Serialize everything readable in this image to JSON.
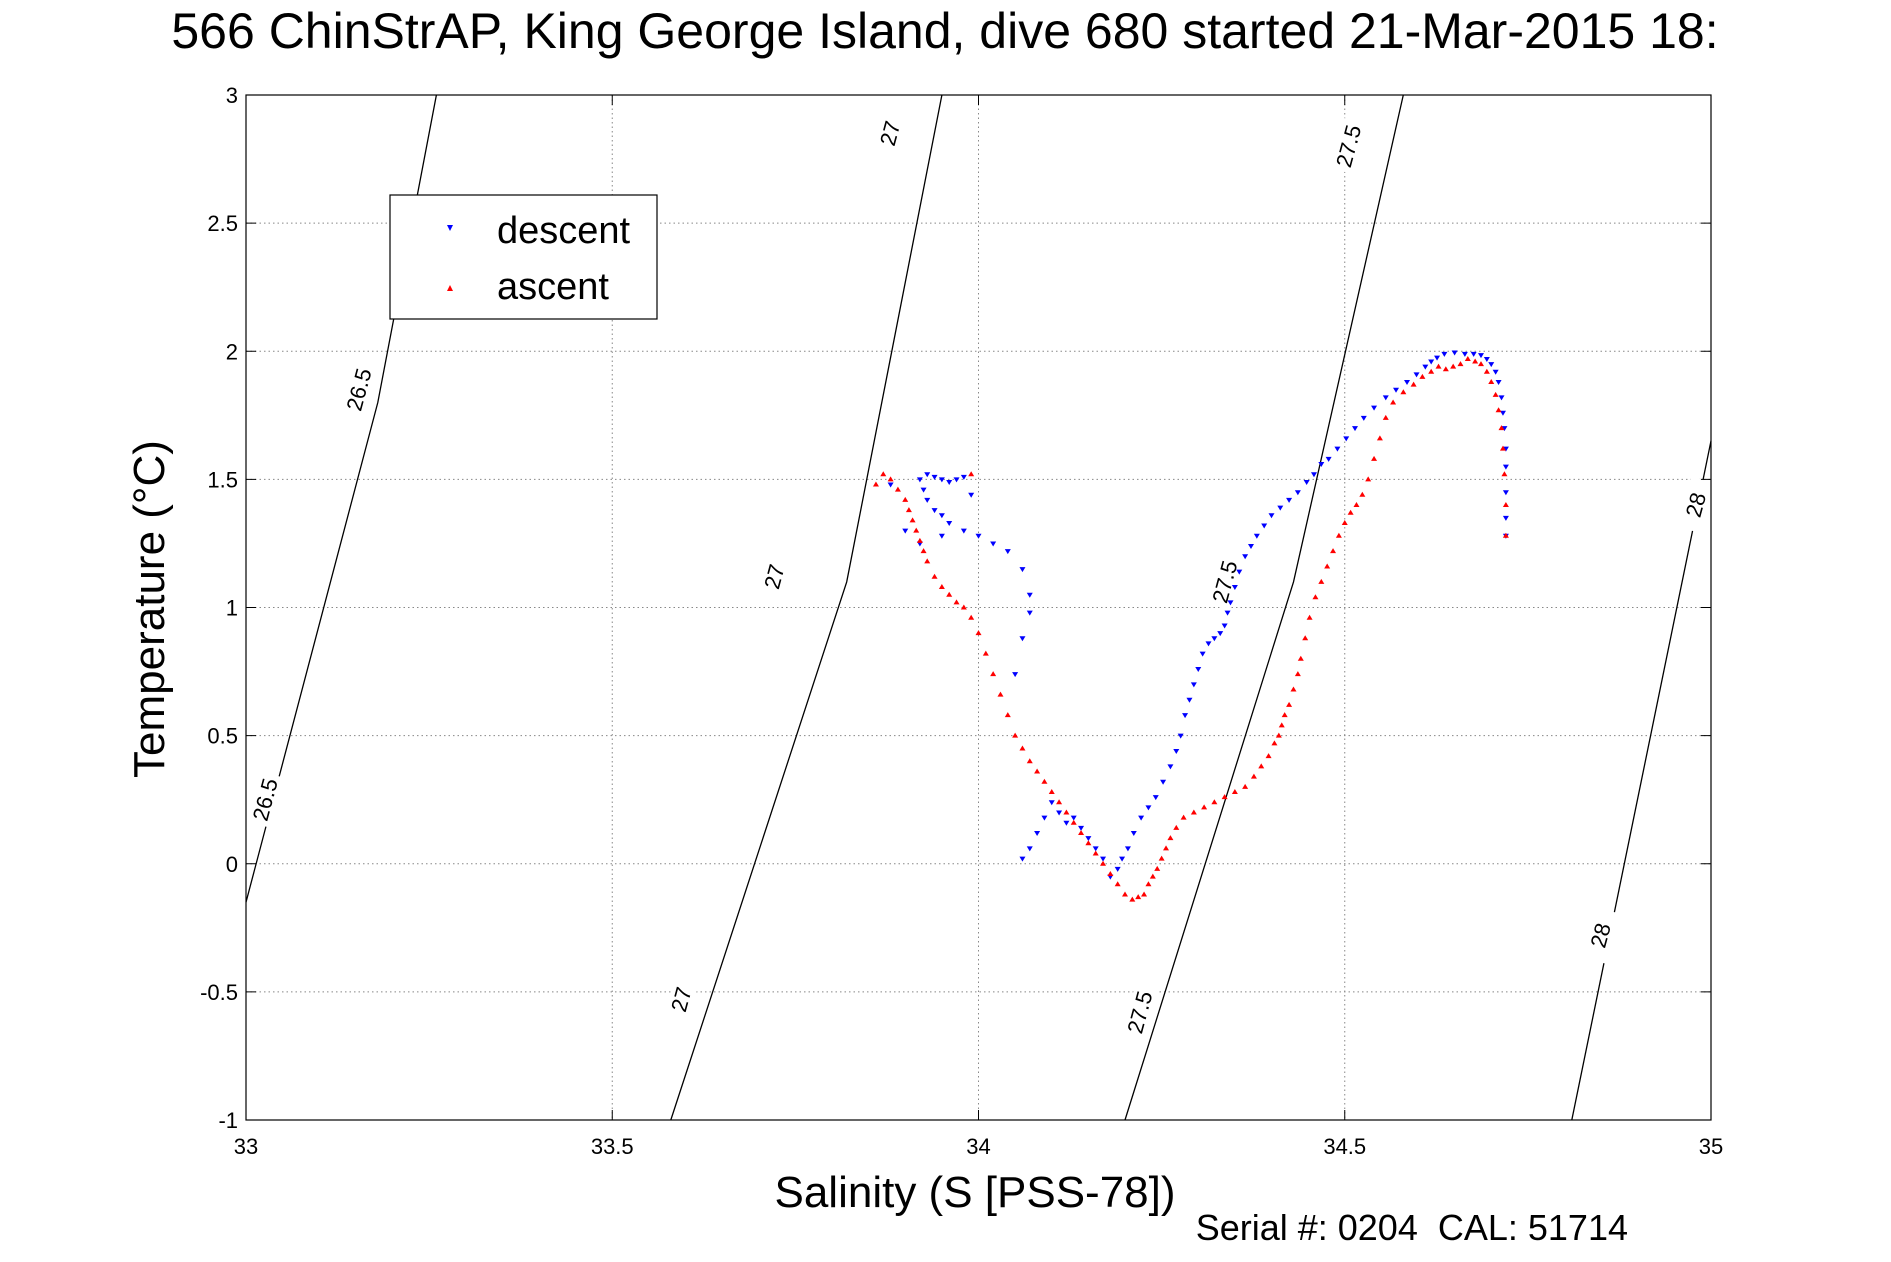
{
  "chart_data": {
    "type": "scatter",
    "title": "566 ChinStrAP, King George Island, dive 680 started 21-Mar-2015 18:",
    "xlabel": "Salinity (S [PSS-78])",
    "ylabel": "Temperature (°C)",
    "xlim": [
      33,
      35
    ],
    "ylim": [
      -1,
      3
    ],
    "x_ticks": [
      "33",
      "33.5",
      "34",
      "34.5",
      "35"
    ],
    "y_ticks": [
      "-1",
      "-0.5",
      "0",
      "0.5",
      "1",
      "1.5",
      "2",
      "2.5",
      "3"
    ],
    "grid": true,
    "legend_position": "top-left",
    "footer": "Serial #: 0204  CAL: 51714",
    "colors": {
      "descent": "#0000ff",
      "ascent": "#ff0000"
    },
    "isopycnals": [
      {
        "label": "26.5",
        "points": [
          [
            33,
            -0.15
          ],
          [
            33.18,
            1.8
          ],
          [
            33.26,
            3
          ]
        ]
      },
      {
        "label": "27",
        "points": [
          [
            33.58,
            -1
          ],
          [
            33.82,
            1.1
          ],
          [
            33.95,
            3
          ]
        ]
      },
      {
        "label": "27.5",
        "points": [
          [
            34.2,
            -1
          ],
          [
            34.43,
            1.1
          ],
          [
            34.58,
            3
          ]
        ]
      },
      {
        "label": "28",
        "points": [
          [
            34.81,
            -1
          ],
          [
            35,
            1.65
          ]
        ]
      }
    ],
    "isopycnal_labels": [
      {
        "text": "26.5",
        "at": [
          33.155,
          1.85
        ],
        "angle": -75
      },
      {
        "text": "26.5",
        "at": [
          33.027,
          0.25
        ],
        "angle": -75
      },
      {
        "text": "27",
        "at": [
          33.88,
          2.85
        ],
        "angle": -75
      },
      {
        "text": "27",
        "at": [
          33.722,
          1.12
        ],
        "angle": -75
      },
      {
        "text": "27",
        "at": [
          33.595,
          -0.53
        ],
        "angle": -75
      },
      {
        "text": "27.5",
        "at": [
          34.506,
          2.8
        ],
        "angle": -75
      },
      {
        "text": "27.5",
        "at": [
          34.337,
          1.1
        ],
        "angle": -75
      },
      {
        "text": "27.5",
        "at": [
          34.221,
          -0.58
        ],
        "angle": -75
      },
      {
        "text": "28",
        "at": [
          34.98,
          1.4
        ],
        "angle": -75
      },
      {
        "text": "28",
        "at": [
          34.85,
          -0.28
        ],
        "angle": -75
      }
    ],
    "series": [
      {
        "name": "descent",
        "marker": "triangle-down",
        "x": [
          34.72,
          34.72,
          34.72,
          34.72,
          34.72,
          34.718,
          34.716,
          34.714,
          34.71,
          34.706,
          34.7,
          34.694,
          34.686,
          34.676,
          34.664,
          34.65,
          34.636,
          34.626,
          34.618,
          34.61,
          34.598,
          34.585,
          34.57,
          34.556,
          34.54,
          34.526,
          34.514,
          34.502,
          34.49,
          34.478,
          34.468,
          34.458,
          34.448,
          34.436,
          34.424,
          34.412,
          34.4,
          34.39,
          34.38,
          34.372,
          34.364,
          34.356,
          34.35,
          34.344,
          34.34,
          34.336,
          34.33,
          34.322,
          34.314,
          34.306,
          34.3,
          34.294,
          34.288,
          34.282,
          34.276,
          34.27,
          34.262,
          34.252,
          34.242,
          34.232,
          34.222,
          34.212,
          34.204,
          34.196,
          34.19,
          34.18,
          34.17,
          34.16,
          34.15,
          34.14,
          34.13,
          34.12,
          34.11,
          34.1,
          34.09,
          34.08,
          34.07,
          34.06,
          34.05,
          34.06,
          34.07,
          34.07,
          34.06,
          34.04,
          34.02,
          34.0,
          33.98,
          33.96,
          33.95,
          33.94,
          33.93,
          33.925,
          33.92,
          33.93,
          33.94,
          33.95,
          33.96,
          33.97,
          33.98,
          33.99,
          33.95,
          33.92,
          33.9,
          33.88
        ],
        "y": [
          1.28,
          1.35,
          1.45,
          1.55,
          1.62,
          1.7,
          1.76,
          1.82,
          1.88,
          1.92,
          1.95,
          1.97,
          1.985,
          1.99,
          1.99,
          1.995,
          1.99,
          1.975,
          1.96,
          1.94,
          1.91,
          1.88,
          1.85,
          1.82,
          1.78,
          1.74,
          1.7,
          1.66,
          1.62,
          1.58,
          1.56,
          1.52,
          1.49,
          1.45,
          1.42,
          1.39,
          1.36,
          1.32,
          1.28,
          1.24,
          1.2,
          1.14,
          1.08,
          1.02,
          0.98,
          0.93,
          0.9,
          0.88,
          0.86,
          0.82,
          0.76,
          0.7,
          0.64,
          0.58,
          0.5,
          0.44,
          0.38,
          0.32,
          0.26,
          0.22,
          0.18,
          0.12,
          0.06,
          0.02,
          -0.02,
          -0.05,
          0.02,
          0.06,
          0.1,
          0.14,
          0.18,
          0.16,
          0.2,
          0.24,
          0.18,
          0.12,
          0.06,
          0.02,
          0.74,
          0.88,
          0.98,
          1.05,
          1.15,
          1.22,
          1.25,
          1.28,
          1.3,
          1.33,
          1.36,
          1.38,
          1.42,
          1.46,
          1.5,
          1.52,
          1.51,
          1.5,
          1.49,
          1.5,
          1.51,
          1.44,
          1.28,
          1.25,
          1.3,
          1.48
        ]
      },
      {
        "name": "ascent",
        "marker": "triangle-up",
        "x": [
          34.72,
          34.72,
          34.718,
          34.716,
          34.714,
          34.71,
          34.706,
          34.7,
          34.694,
          34.686,
          34.678,
          34.668,
          34.658,
          34.648,
          34.638,
          34.628,
          34.618,
          34.606,
          34.594,
          34.58,
          34.566,
          34.556,
          34.548,
          34.54,
          34.532,
          34.524,
          34.516,
          34.508,
          34.5,
          34.492,
          34.484,
          34.476,
          34.468,
          34.46,
          34.452,
          34.446,
          34.44,
          34.436,
          34.43,
          34.424,
          34.418,
          34.414,
          34.41,
          34.404,
          34.396,
          34.386,
          34.376,
          34.364,
          34.35,
          34.336,
          34.322,
          34.308,
          34.294,
          34.28,
          34.27,
          34.262,
          34.256,
          34.25,
          34.244,
          34.238,
          34.232,
          34.226,
          34.218,
          34.21,
          34.2,
          34.19,
          34.18,
          34.17,
          34.16,
          34.15,
          34.14,
          34.13,
          34.12,
          34.11,
          34.1,
          34.09,
          34.08,
          34.07,
          34.06,
          34.05,
          34.04,
          34.03,
          34.02,
          34.01,
          34.0,
          33.99,
          33.98,
          33.97,
          33.96,
          33.95,
          33.94,
          33.93,
          33.925,
          33.92,
          33.915,
          33.91,
          33.905,
          33.9,
          33.89,
          33.88,
          33.87,
          33.86,
          33.99
        ],
        "y": [
          1.28,
          1.4,
          1.52,
          1.62,
          1.7,
          1.77,
          1.83,
          1.88,
          1.92,
          1.95,
          1.96,
          1.97,
          1.95,
          1.94,
          1.93,
          1.94,
          1.92,
          1.9,
          1.87,
          1.84,
          1.8,
          1.74,
          1.66,
          1.58,
          1.5,
          1.44,
          1.4,
          1.37,
          1.33,
          1.28,
          1.22,
          1.16,
          1.1,
          1.04,
          0.96,
          0.88,
          0.8,
          0.74,
          0.68,
          0.62,
          0.58,
          0.54,
          0.5,
          0.47,
          0.42,
          0.38,
          0.34,
          0.3,
          0.28,
          0.26,
          0.24,
          0.22,
          0.2,
          0.18,
          0.14,
          0.1,
          0.06,
          0.02,
          -0.02,
          -0.05,
          -0.08,
          -0.12,
          -0.13,
          -0.14,
          -0.12,
          -0.08,
          -0.04,
          0.0,
          0.04,
          0.08,
          0.12,
          0.16,
          0.2,
          0.24,
          0.28,
          0.32,
          0.36,
          0.4,
          0.45,
          0.5,
          0.58,
          0.66,
          0.74,
          0.82,
          0.9,
          0.96,
          1.0,
          1.02,
          1.05,
          1.08,
          1.12,
          1.18,
          1.22,
          1.26,
          1.3,
          1.34,
          1.38,
          1.42,
          1.46,
          1.5,
          1.52,
          1.48,
          1.52
        ]
      }
    ]
  }
}
